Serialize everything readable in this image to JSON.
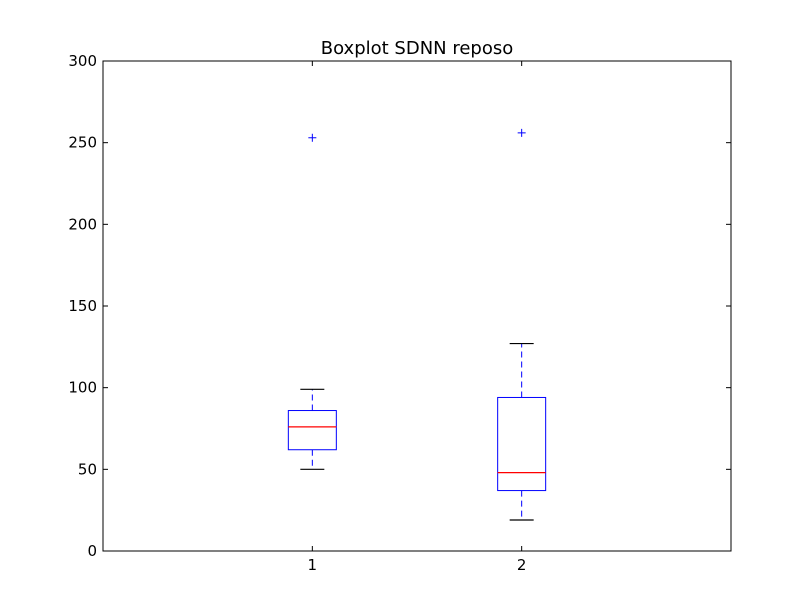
{
  "chart_data": {
    "type": "box",
    "title": "Boxplot SDNN reposo",
    "xlabel": "",
    "ylabel": "",
    "ylim": [
      0,
      300
    ],
    "y_ticks": [
      0,
      50,
      100,
      150,
      200,
      250,
      300
    ],
    "x_ticks": [
      "1",
      "2"
    ],
    "grid": false,
    "colors": {
      "box": "#0000ff",
      "median": "#ff0000",
      "whisker": "#0000ff",
      "cap": "#000000",
      "flier": "#0000ff"
    },
    "boxes": [
      {
        "label": "1",
        "whisker_low": 50,
        "q1": 62,
        "median": 76,
        "q3": 86,
        "whisker_high": 99,
        "outliers": [
          253
        ]
      },
      {
        "label": "2",
        "whisker_low": 19,
        "q1": 37,
        "median": 48,
        "q3": 94,
        "whisker_high": 127,
        "outliers": [
          256
        ]
      }
    ]
  }
}
